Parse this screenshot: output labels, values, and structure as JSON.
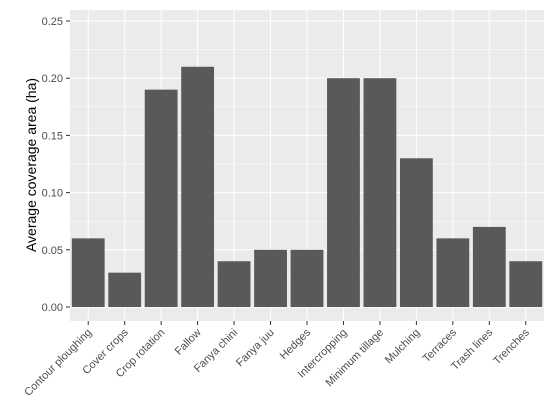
{
  "chart_data": {
    "type": "bar",
    "title": "",
    "xlabel": "",
    "ylabel": "Average coverage area (ha)",
    "ylim": [
      0,
      0.25
    ],
    "yticks": [
      "0.00",
      "0.05",
      "0.10",
      "0.15",
      "0.20",
      "0.25"
    ],
    "grid": true,
    "categories": [
      "Contour ploughing",
      "Cover crops",
      "Crop rotation",
      "Fallow",
      "Fanya chini",
      "Fanya juu",
      "Hedges",
      "Intercropping",
      "Minimum tillage",
      "Mulching",
      "Terraces",
      "Trash lines",
      "Trenches"
    ],
    "values": [
      0.06,
      0.03,
      0.19,
      0.21,
      0.04,
      0.05,
      0.05,
      0.2,
      0.2,
      0.13,
      0.06,
      0.07,
      0.04
    ],
    "colors": {
      "panel": "#ebebeb",
      "grid": "#ffffff",
      "bar": "#595959",
      "tick": "#4d4d4d"
    }
  }
}
